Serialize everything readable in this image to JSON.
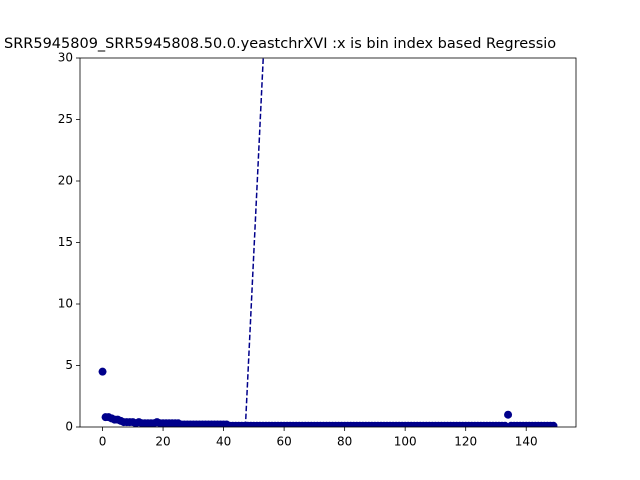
{
  "chart_data": {
    "type": "scatter",
    "title": "SRR5945809_SRR5945808.50.0.yeastchrXVI :x is bin index based Regressio",
    "xlim": [
      -7.45,
      156.45
    ],
    "ylim": [
      0,
      30
    ],
    "xticks": [
      0,
      20,
      40,
      60,
      80,
      100,
      120,
      140
    ],
    "yticks": [
      0,
      5,
      10,
      15,
      20,
      25,
      30
    ],
    "series": [
      {
        "type": "scatter",
        "color": "#00008b",
        "x": [
          0,
          1,
          2,
          3,
          4,
          5,
          6,
          7,
          8,
          9,
          10,
          11,
          12,
          13,
          14,
          15,
          16,
          17,
          18,
          19,
          20,
          21,
          22,
          23,
          24,
          25,
          26,
          27,
          28,
          29,
          30,
          31,
          32,
          33,
          34,
          35,
          36,
          37,
          38,
          39,
          40,
          41,
          42,
          43,
          44,
          45,
          46,
          47,
          48,
          49,
          50,
          51,
          52,
          53,
          54,
          55,
          56,
          57,
          58,
          59,
          60,
          61,
          62,
          63,
          64,
          65,
          66,
          67,
          68,
          69,
          70,
          71,
          72,
          73,
          74,
          75,
          76,
          77,
          78,
          79,
          80,
          81,
          82,
          83,
          84,
          85,
          86,
          87,
          88,
          89,
          90,
          91,
          92,
          93,
          94,
          95,
          96,
          97,
          98,
          99,
          100,
          101,
          102,
          103,
          104,
          105,
          106,
          107,
          108,
          109,
          110,
          111,
          112,
          113,
          114,
          115,
          116,
          117,
          118,
          119,
          120,
          121,
          122,
          123,
          124,
          125,
          126,
          127,
          128,
          129,
          130,
          131,
          132,
          133,
          134,
          135,
          136,
          137,
          138,
          139,
          140,
          141,
          142,
          143,
          144,
          145,
          146,
          147,
          148,
          149
        ],
        "values": [
          4.5,
          0.8,
          0.8,
          0.7,
          0.6,
          0.6,
          0.5,
          0.4,
          0.4,
          0.4,
          0.4,
          0.3,
          0.4,
          0.3,
          0.3,
          0.3,
          0.3,
          0.3,
          0.4,
          0.3,
          0.3,
          0.3,
          0.3,
          0.3,
          0.3,
          0.3,
          0.2,
          0.2,
          0.2,
          0.2,
          0.2,
          0.2,
          0.2,
          0.2,
          0.2,
          0.2,
          0.2,
          0.2,
          0.2,
          0.2,
          0.2,
          0.2,
          0.1,
          0.1,
          0.1,
          0.1,
          0.1,
          0.1,
          0.1,
          0.1,
          0.1,
          0.1,
          0.1,
          0.1,
          0.1,
          0.1,
          0.1,
          0.1,
          0.1,
          0.1,
          0.1,
          0.1,
          0.1,
          0.1,
          0.1,
          0.1,
          0.1,
          0.1,
          0.1,
          0.1,
          0.1,
          0.1,
          0.1,
          0.1,
          0.1,
          0.1,
          0.1,
          0.1,
          0.1,
          0.1,
          0.1,
          0.1,
          0.1,
          0.1,
          0.1,
          0.1,
          0.1,
          0.1,
          0.1,
          0.1,
          0.1,
          0.1,
          0.1,
          0.1,
          0.1,
          0.1,
          0.1,
          0.1,
          0.1,
          0.1,
          0.1,
          0.1,
          0.1,
          0.1,
          0.1,
          0.1,
          0.1,
          0.1,
          0.1,
          0.1,
          0.1,
          0.1,
          0.1,
          0.1,
          0.1,
          0.1,
          0.1,
          0.1,
          0.1,
          0.1,
          0.1,
          0.1,
          0.1,
          0.1,
          0.1,
          0.1,
          0.1,
          0.1,
          0.1,
          0.1,
          0.1,
          0.1,
          0.1,
          0.1,
          1.0,
          0.1,
          0.1,
          0.1,
          0.1,
          0.1,
          0.1,
          0.1,
          0.1,
          0.1,
          0.1,
          0.1,
          0.1,
          0.1,
          0.1,
          0.1
        ]
      },
      {
        "type": "line",
        "color": "#00008b",
        "dashed": true,
        "x": [
          47.2,
          53.1
        ],
        "values": [
          0,
          30
        ]
      }
    ]
  }
}
